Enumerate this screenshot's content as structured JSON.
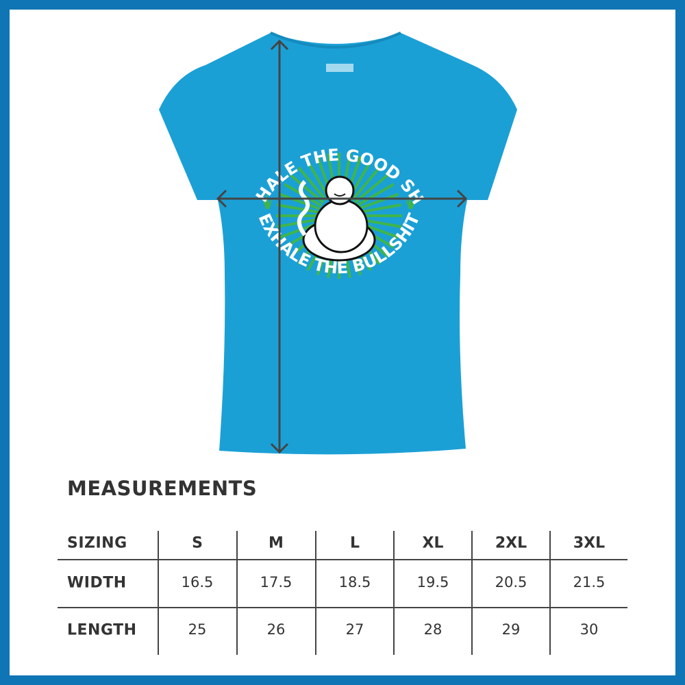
{
  "product": {
    "shirt_color": "#1ba0d6",
    "design_text_top": "INHALE THE GOOD SHIT",
    "design_text_bottom": "EXHALE THE BULLSHIT",
    "design_accent": "#3fb54a",
    "border_color": "#0f75b5"
  },
  "measurements": {
    "title": "MEASUREMENTS",
    "header_label": "SIZING",
    "sizes": [
      "S",
      "M",
      "L",
      "XL",
      "2XL",
      "3XL"
    ],
    "rows": [
      {
        "label": "WIDTH",
        "values": [
          "16.5",
          "17.5",
          "18.5",
          "19.5",
          "20.5",
          "21.5"
        ]
      },
      {
        "label": "LENGTH",
        "values": [
          "25",
          "26",
          "27",
          "28",
          "29",
          "30"
        ]
      }
    ]
  }
}
